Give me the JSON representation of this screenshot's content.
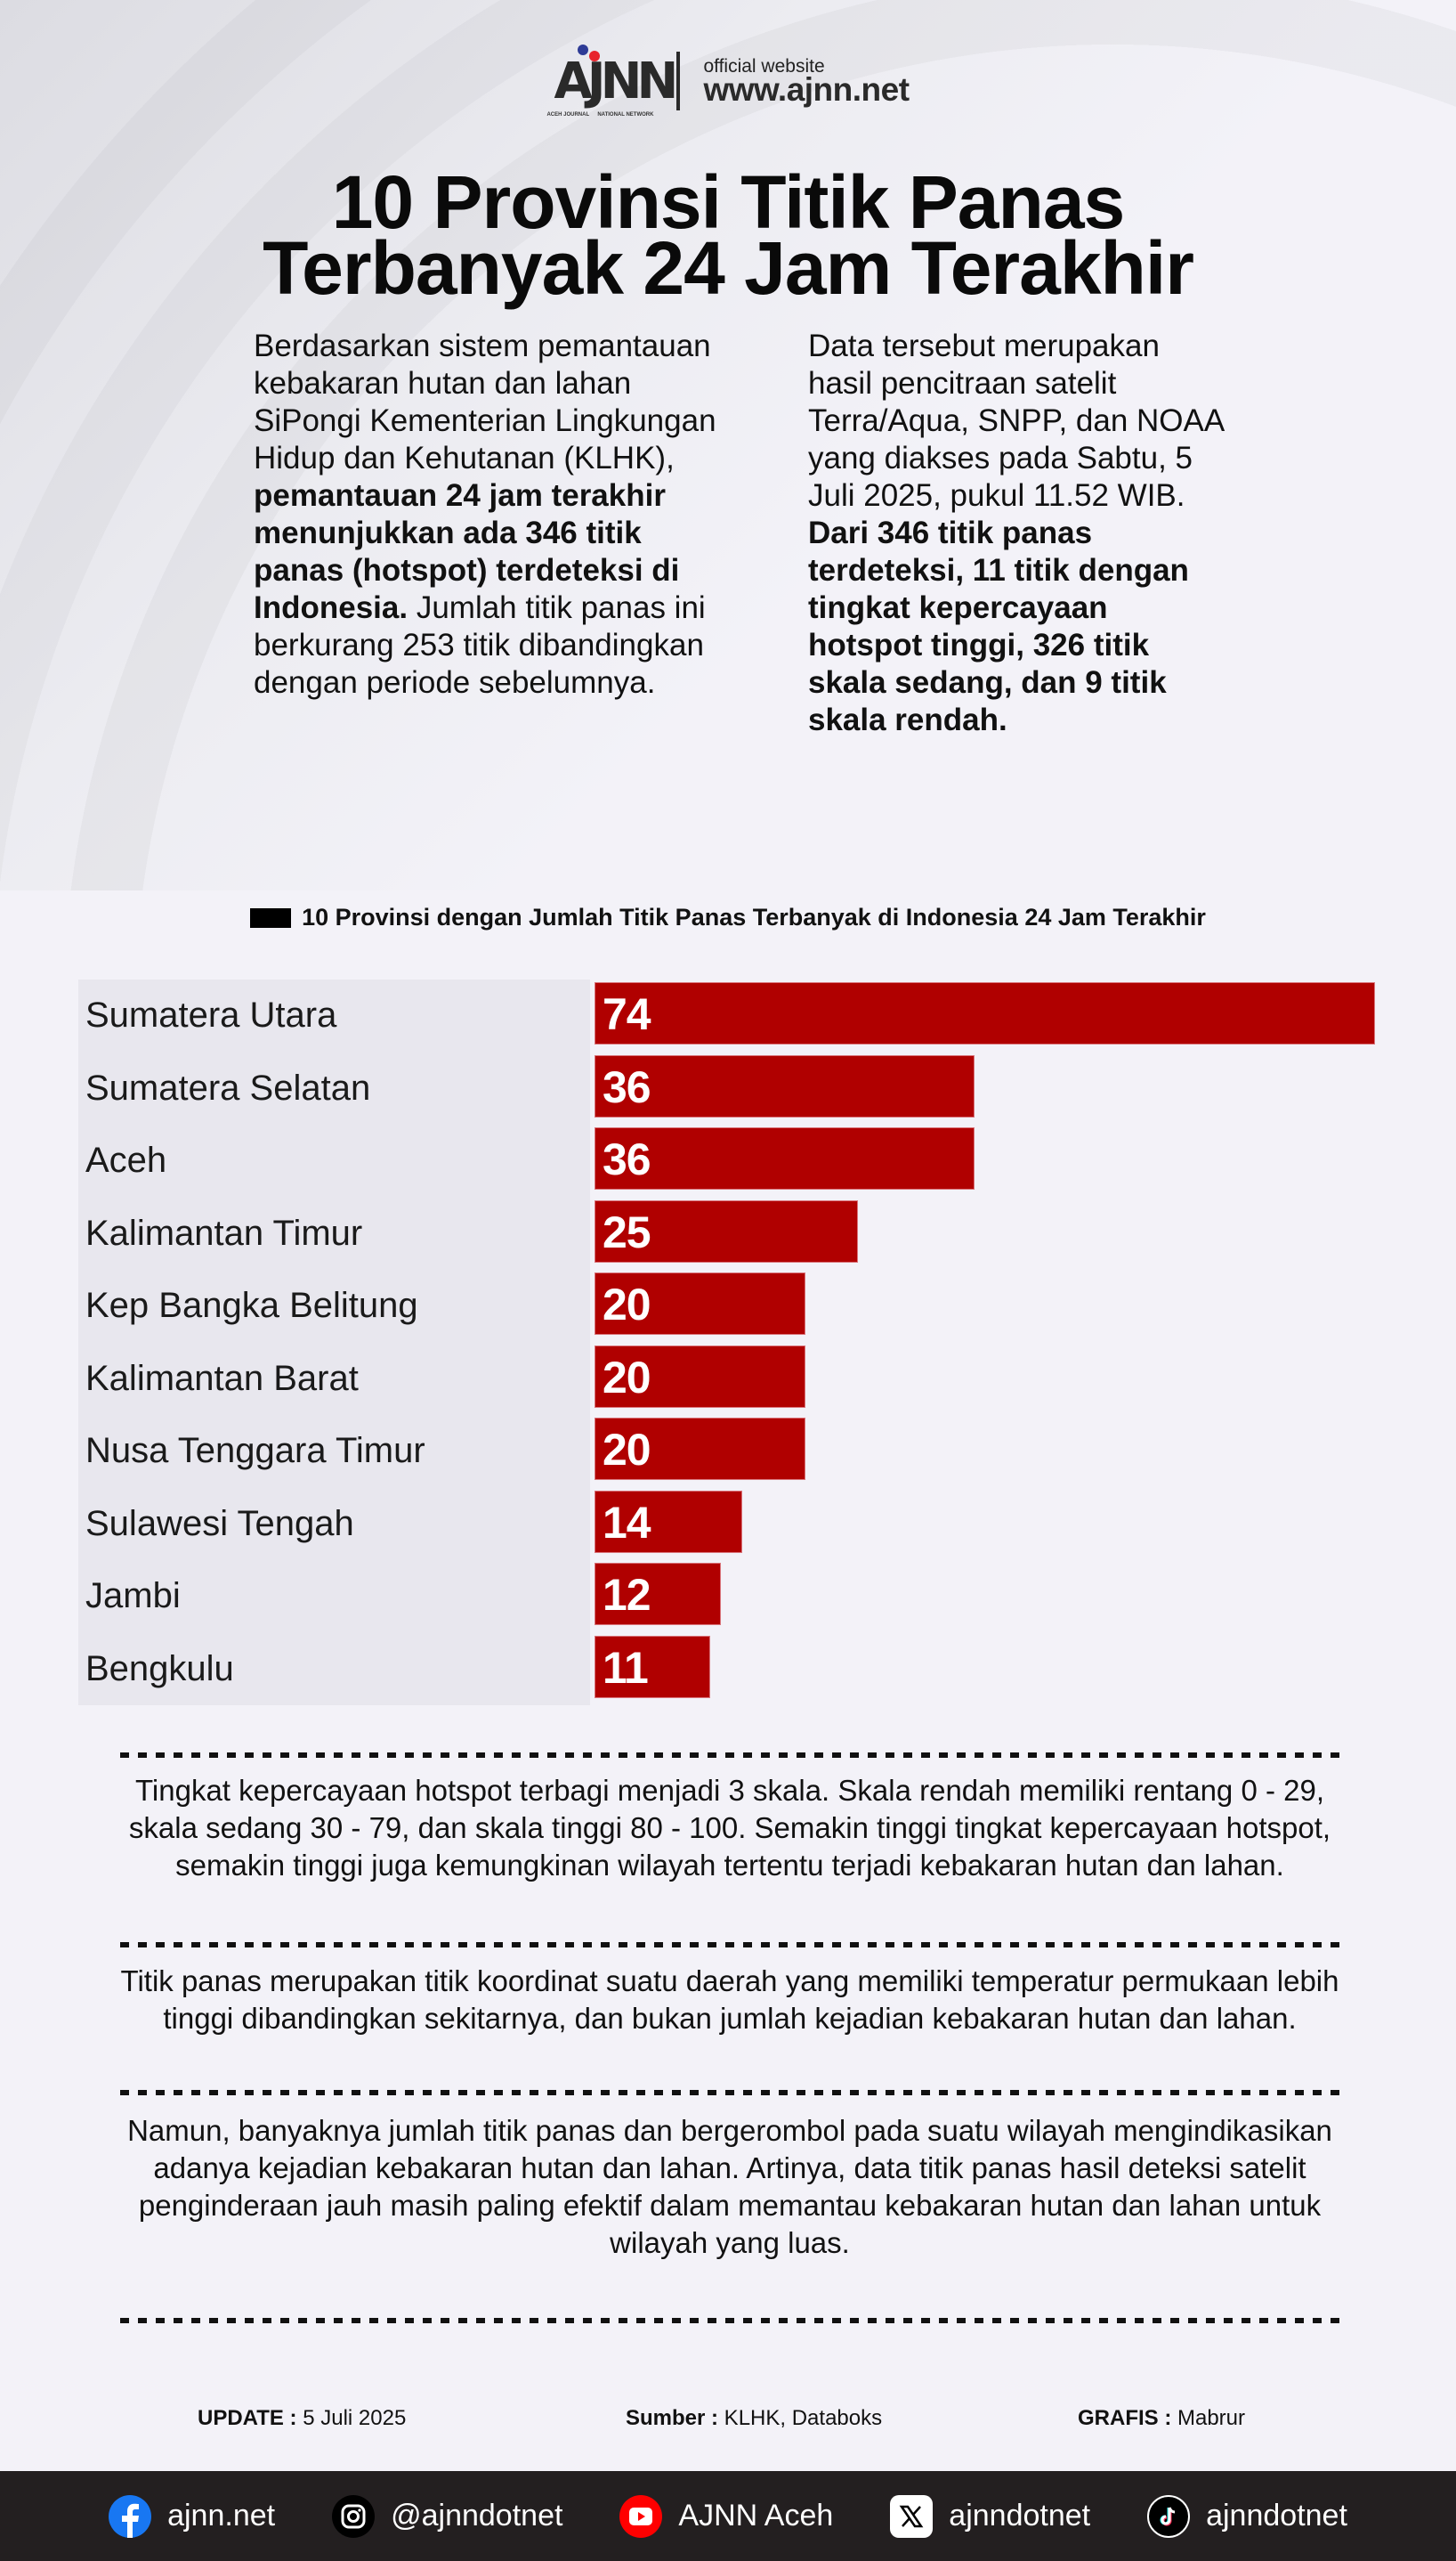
{
  "header": {
    "logo_text": "AJNN",
    "logo_sub_left": "ACEH JOURNAL",
    "logo_sub_right": "NATIONAL NETWORK",
    "site_caption": "official website",
    "site_url": "www.ajnn.net"
  },
  "title": {
    "line1": "10 Provinsi Titik Panas",
    "line2": "Terbanyak 24 Jam Terakhir"
  },
  "intro": {
    "left": {
      "plain1": "Berdasarkan sistem pemantauan kebakaran hutan dan lahan SiPongi Kementerian Lingkungan Hidup dan Kehutanan (KLHK), ",
      "bold": "pemantauan 24 jam terakhir menunjukkan ada 346 titik panas (hotspot) terdeteksi di Indonesia.",
      "plain2": " Jumlah titik panas ini berkurang 253 titik dibandingkan dengan periode sebelumnya."
    },
    "right": {
      "plain1": "Data tersebut merupakan hasil pencitraan satelit Terra/Aqua, SNPP, dan NOAA yang diakses pada Sabtu, 5 Juli 2025, pukul 11.52 WIB. ",
      "bold": "Dari 346 titik panas terdeteksi, 11 titik dengan tingkat kepercayaan hotspot tinggi, 326 titik skala sedang, dan 9 titik skala rendah."
    }
  },
  "colors": {
    "bar": "#b00000",
    "label_panel": "#e8e7ee",
    "background": "#f3f2f8",
    "footer": "#231f20"
  },
  "chart_data": {
    "type": "bar",
    "orientation": "horizontal",
    "title": "10 Provinsi dengan Jumlah Titik Panas Terbanyak di Indonesia 24 Jam Terakhir",
    "legend": [
      "Jumlah titik panas"
    ],
    "categories": [
      "Sumatera Utara",
      "Sumatera Selatan",
      "Aceh",
      "Kalimantan Timur",
      "Kep Bangka Belitung",
      "Kalimantan Barat",
      "Nusa Tenggara Timur",
      "Sulawesi Tengah",
      "Jambi",
      "Bengkulu"
    ],
    "values": [
      74,
      36,
      36,
      25,
      20,
      20,
      20,
      14,
      12,
      11
    ],
    "xlabel": "",
    "ylabel": "",
    "xlim": [
      0,
      74
    ],
    "grid": false,
    "data_labels": true
  },
  "notes": [
    "Tingkat kepercayaan hotspot terbagi menjadi 3 skala. Skala rendah memiliki rentang 0 - 29, skala sedang 30 - 79, dan skala tinggi 80 - 100. Semakin tinggi tingkat kepercayaan hotspot, semakin tinggi juga kemungkinan wilayah tertentu terjadi kebakaran hutan dan lahan.",
    "Titik panas merupakan titik koordinat suatu daerah yang memiliki temperatur permukaan lebih tinggi dibandingkan sekitarnya, dan bukan jumlah kejadian kebakaran hutan dan lahan.",
    "Namun, banyaknya jumlah titik panas dan bergerombol pada suatu wilayah mengindikasikan adanya kejadian kebakaran hutan dan lahan. Artinya, data titik panas hasil deteksi satelit penginderaan jauh masih paling efektif dalam memantau kebakaran hutan dan lahan untuk wilayah yang luas."
  ],
  "credits": {
    "update_label": "UPDATE :",
    "update_value": " 5 Juli 2025",
    "source_label": "Sumber :",
    "source_value": " KLHK, Databoks",
    "graphic_label": "GRAFIS :",
    "graphic_value": " Mabrur"
  },
  "footer": {
    "socials": [
      {
        "icon": "facebook-icon",
        "label": "ajnn.net"
      },
      {
        "icon": "instagram-icon",
        "label": "@ajnndotnet"
      },
      {
        "icon": "youtube-icon",
        "label": "AJNN Aceh"
      },
      {
        "icon": "x-twitter-icon",
        "label": "ajnndotnet"
      },
      {
        "icon": "tiktok-icon",
        "label": "ajnndotnet"
      }
    ]
  }
}
